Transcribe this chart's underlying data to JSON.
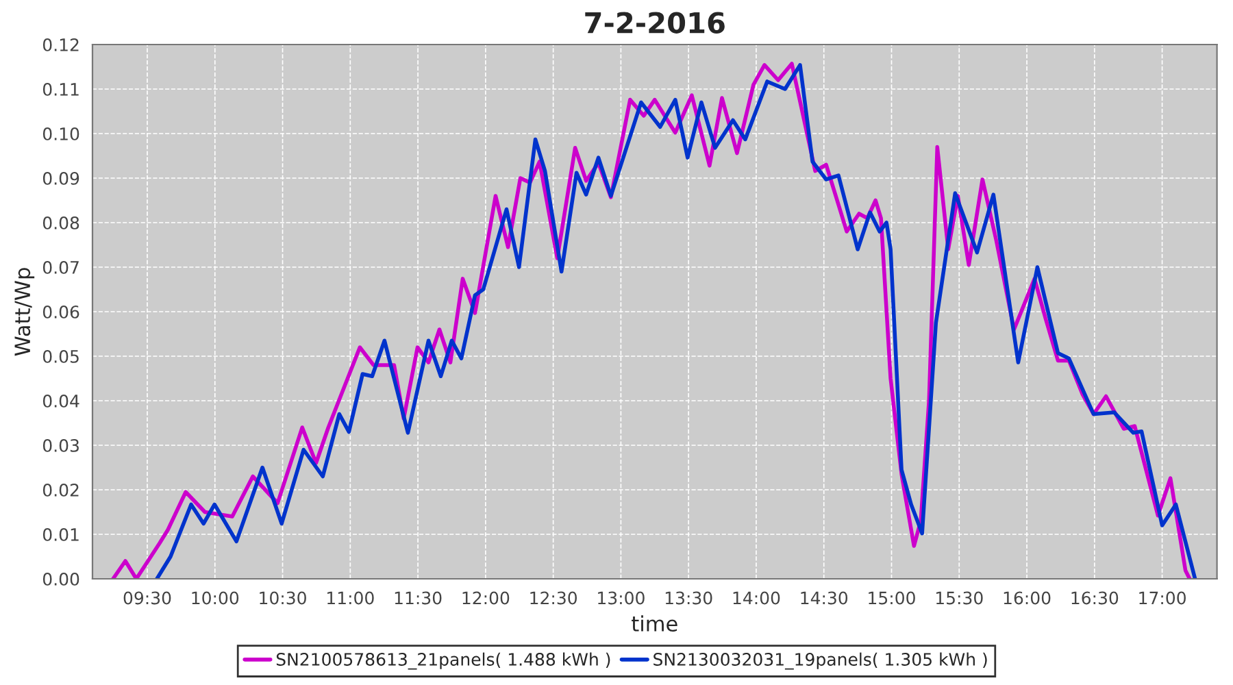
{
  "chart_data": {
    "type": "line",
    "title": "7-2-2016",
    "xlabel": "time",
    "ylabel": "Watt/Wp",
    "xlim": [
      9.095,
      17.405
    ],
    "ylim": [
      0,
      0.12
    ],
    "xticks": [
      {
        "value": 9.5,
        "label": "09:30"
      },
      {
        "value": 10,
        "label": "10:00"
      },
      {
        "value": 10.5,
        "label": "10:30"
      },
      {
        "value": 11,
        "label": "11:00"
      },
      {
        "value": 11.5,
        "label": "11:30"
      },
      {
        "value": 12,
        "label": "12:00"
      },
      {
        "value": 12.5,
        "label": "12:30"
      },
      {
        "value": 13,
        "label": "13:00"
      },
      {
        "value": 13.5,
        "label": "13:30"
      },
      {
        "value": 14,
        "label": "14:00"
      },
      {
        "value": 14.5,
        "label": "14:30"
      },
      {
        "value": 15,
        "label": "15:00"
      },
      {
        "value": 15.5,
        "label": "15:30"
      },
      {
        "value": 16,
        "label": "16:00"
      },
      {
        "value": 16.5,
        "label": "16:30"
      },
      {
        "value": 17,
        "label": "17:00"
      }
    ],
    "yticks": [
      {
        "value": 0,
        "label": "0.00"
      },
      {
        "value": 0.01,
        "label": "0.01"
      },
      {
        "value": 0.02,
        "label": "0.02"
      },
      {
        "value": 0.03,
        "label": "0.03"
      },
      {
        "value": 0.04,
        "label": "0.04"
      },
      {
        "value": 0.05,
        "label": "0.05"
      },
      {
        "value": 0.06,
        "label": "0.06"
      },
      {
        "value": 0.07,
        "label": "0.07"
      },
      {
        "value": 0.08,
        "label": "0.08"
      },
      {
        "value": 0.09,
        "label": "0.09"
      },
      {
        "value": 0.1,
        "label": "0.10"
      },
      {
        "value": 0.11,
        "label": "0.11"
      },
      {
        "value": 0.12,
        "label": "0.12"
      }
    ],
    "grid": true,
    "legend": "bottom",
    "marker": "none",
    "line_style": "solid",
    "series": [
      {
        "name": "SN2100578613_21panels( 1.488 kWh )",
        "color": "#cc00cc",
        "x": [
          9.247,
          9.338,
          9.419,
          9.591,
          9.652,
          9.784,
          9.926,
          10.128,
          10.28,
          10.463,
          10.645,
          10.747,
          10.838,
          11.071,
          11.172,
          11.324,
          11.395,
          11.497,
          11.578,
          11.659,
          11.74,
          11.831,
          11.922,
          12.074,
          12.166,
          12.257,
          12.328,
          12.399,
          12.53,
          12.662,
          12.743,
          12.834,
          12.926,
          13.068,
          13.169,
          13.25,
          13.402,
          13.524,
          13.655,
          13.747,
          13.858,
          13.98,
          14.061,
          14.162,
          14.263,
          14.436,
          14.517,
          14.669,
          14.76,
          14.821,
          14.882,
          14.922,
          14.993,
          15.074,
          15.166,
          15.216,
          15.277,
          15.338,
          15.419,
          15.49,
          15.571,
          15.672,
          15.774,
          15.905,
          16.057,
          16.138,
          16.23,
          16.311,
          16.412,
          16.493,
          16.585,
          16.716,
          16.797,
          16.969,
          17.061,
          17.172,
          17.203
        ],
        "values": [
          0,
          0.004,
          0,
          0.008,
          0.011,
          0.0195,
          0.015,
          0.014,
          0.023,
          0.017,
          0.034,
          0.026,
          0.034,
          0.052,
          0.048,
          0.048,
          0.036,
          0.052,
          0.0486,
          0.056,
          0.0486,
          0.0674,
          0.0597,
          0.086,
          0.0745,
          0.09,
          0.089,
          0.0937,
          0.072,
          0.0968,
          0.0894,
          0.0934,
          0.0857,
          0.1076,
          0.104,
          0.1076,
          0.1002,
          0.1086,
          0.0928,
          0.108,
          0.0956,
          0.111,
          0.1154,
          0.112,
          0.1157,
          0.0916,
          0.093,
          0.078,
          0.082,
          0.081,
          0.085,
          0.081,
          0.045,
          0.0235,
          0.0074,
          0.013,
          0.04,
          0.097,
          0.074,
          0.086,
          0.0705,
          0.0897,
          0.076,
          0.056,
          0.0674,
          0.0585,
          0.049,
          0.049,
          0.0414,
          0.037,
          0.041,
          0.0337,
          0.0343,
          0.0142,
          0.0226,
          0.0019,
          0
        ]
      },
      {
        "name": "SN2130032031_19panels( 1.305 kWh )",
        "color": "#0033cc",
        "x": [
          9.571,
          9.672,
          9.824,
          9.916,
          9.997,
          10.159,
          10.351,
          10.493,
          10.655,
          10.797,
          10.919,
          10.99,
          11.091,
          11.162,
          11.253,
          11.426,
          11.578,
          11.669,
          11.75,
          11.821,
          11.922,
          11.983,
          12.155,
          12.247,
          12.368,
          12.439,
          12.561,
          12.672,
          12.743,
          12.834,
          12.926,
          13.149,
          13.29,
          13.402,
          13.493,
          13.595,
          13.696,
          13.828,
          13.919,
          14.081,
          14.213,
          14.324,
          14.416,
          14.517,
          14.608,
          14.75,
          14.841,
          14.912,
          14.963,
          14.993,
          15.074,
          15.145,
          15.226,
          15.328,
          15.47,
          15.632,
          15.753,
          15.936,
          16.078,
          16.23,
          16.311,
          16.493,
          16.645,
          16.787,
          16.848,
          17.0,
          17.101,
          17.243
        ],
        "values": [
          0,
          0.005,
          0.0167,
          0.0124,
          0.0167,
          0.0084,
          0.025,
          0.0124,
          0.029,
          0.023,
          0.037,
          0.033,
          0.046,
          0.0455,
          0.0535,
          0.0328,
          0.0535,
          0.0455,
          0.0535,
          0.0495,
          0.0637,
          0.065,
          0.083,
          0.07,
          0.0987,
          0.0916,
          0.069,
          0.0912,
          0.0863,
          0.0946,
          0.086,
          0.107,
          0.1015,
          0.1076,
          0.0946,
          0.107,
          0.0968,
          0.103,
          0.0987,
          0.1117,
          0.11,
          0.1154,
          0.0937,
          0.0897,
          0.0906,
          0.074,
          0.0823,
          0.078,
          0.08,
          0.074,
          0.0245,
          0.0167,
          0.0102,
          0.0575,
          0.0866,
          0.0733,
          0.0863,
          0.0486,
          0.07,
          0.0507,
          0.0495,
          0.037,
          0.0374,
          0.0328,
          0.0331,
          0.012,
          0.0167,
          0
        ]
      }
    ]
  }
}
